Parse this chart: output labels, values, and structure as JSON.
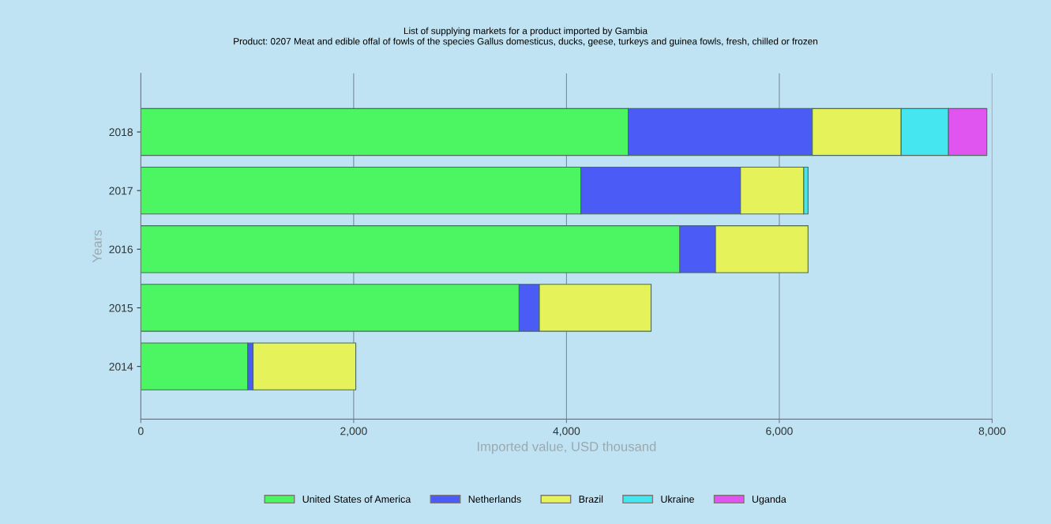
{
  "chart_data": {
    "type": "bar",
    "orientation": "horizontal",
    "stacked": true,
    "title": "List of supplying markets for a product imported by Gambia",
    "subtitle": "Product: 0207 Meat and edible offal of fowls of the species Gallus domesticus, ducks, geese, turkeys and guinea fowls, fresh, chilled or frozen",
    "xlabel": "Imported value, USD thousand",
    "ylabel": "Years",
    "categories": [
      "2018",
      "2017",
      "2016",
      "2015",
      "2014"
    ],
    "series": [
      {
        "name": "United States of America",
        "color": "#4cf562",
        "values": [
          4580,
          4135,
          5065,
          3555,
          1005
        ]
      },
      {
        "name": "Netherlands",
        "color": "#4a5cf5",
        "values": [
          1730,
          1500,
          335,
          190,
          50
        ]
      },
      {
        "name": "Brazil",
        "color": "#e6f25a",
        "values": [
          835,
          595,
          870,
          1050,
          965
        ]
      },
      {
        "name": "Ukraine",
        "color": "#45e6f0",
        "values": [
          445,
          40,
          null,
          null,
          null
        ]
      },
      {
        "name": "Uganda",
        "color": "#e055f0",
        "values": [
          360,
          null,
          null,
          null,
          null
        ]
      }
    ],
    "xlim": [
      0,
      8000
    ],
    "xticks": [
      {
        "value": 0,
        "label": "0"
      },
      {
        "value": 2000,
        "label": "2,000"
      },
      {
        "value": 4000,
        "label": "4,000"
      },
      {
        "value": 6000,
        "label": "6,000"
      },
      {
        "value": 8000,
        "label": "8,000"
      }
    ],
    "grid": "x",
    "legend": "bottom"
  }
}
